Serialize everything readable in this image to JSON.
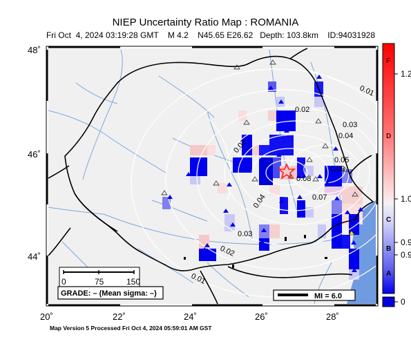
{
  "header": {
    "title": "NIEP Uncertainty Ratio Map : ROMANIA",
    "subtitle": "Fri Oct  4, 2024 03:19:28 GMT    M 4.2    N45.65 E26.62   Depth: 103.8km    ID:94031928"
  },
  "footer": "Map Version 5 Processed Fri Oct  4, 2024 05:59:01 AM GST",
  "axes": {
    "lat_labels": [
      "48˚",
      "46˚",
      "44˚"
    ],
    "lon_labels": [
      "20˚",
      "22˚",
      "24˚",
      "26˚",
      "28˚"
    ]
  },
  "contours": [
    "0.01",
    "0.02",
    "0.03",
    "0.04",
    "0.05",
    "0.06",
    "0.07",
    "0.08",
    "0.03",
    "0.04",
    "0.02",
    "0.01",
    "0.03"
  ],
  "scale_bar": {
    "ticks": [
      "0",
      "75",
      "150"
    ]
  },
  "grade_box": {
    "text": "GRADE: – (Mean sigma: –)"
  },
  "mi_box": {
    "text": "MI = 6.0"
  },
  "colorbar": {
    "letters": [
      "F",
      "D",
      "C",
      "B",
      "A"
    ],
    "ticks": [
      "1.2",
      "1.0",
      "0.9",
      "0.9",
      "0"
    ]
  },
  "colors": {
    "map_bg": "#f0f0f0",
    "river": "#7aa8dc",
    "sea": "#6f9be0",
    "contour": "#ffffff",
    "high": "#ff0000",
    "low": "#0000ee",
    "epicenter": "#ff2020"
  },
  "map_data": {
    "epicenter": {
      "lat": 45.65,
      "lon": 26.62,
      "magnitude": 4.2,
      "depth_km": 103.8
    }
  }
}
